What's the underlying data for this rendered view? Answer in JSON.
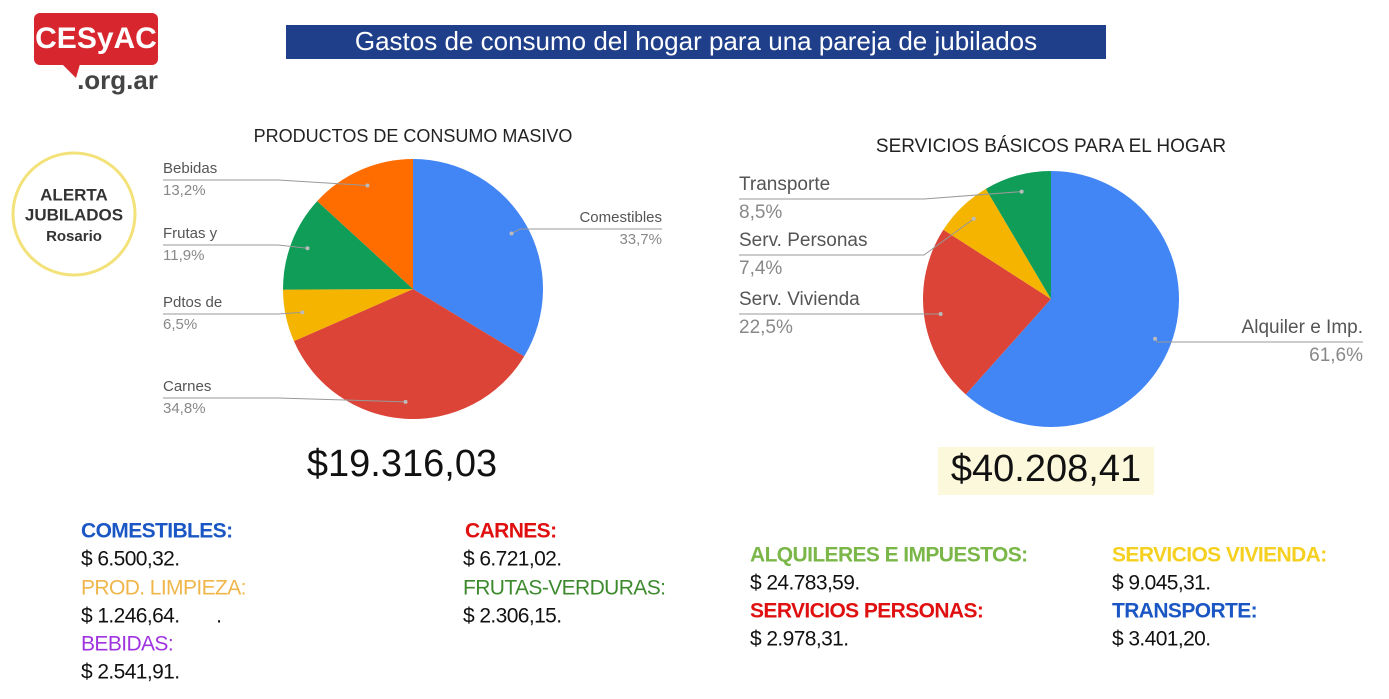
{
  "logo": {
    "name": "CESyAC",
    "domain": ".org.ar"
  },
  "badge": [
    "ALERTA",
    "JUBILADOS",
    "Rosario"
  ],
  "title": "Gastos de consumo del hogar para una pareja de jubilados",
  "chart_data": [
    {
      "type": "pie",
      "title": "PRODUCTOS DE CONSUMO MASIVO",
      "categories": [
        "Comestibles",
        "Carnes",
        "Pdtos de",
        "Frutas y",
        "Bebidas"
      ],
      "values": [
        33.7,
        34.8,
        6.5,
        11.9,
        13.2
      ],
      "value_labels": [
        "33,7%",
        "34,8%",
        "6,5%",
        "11,9%",
        "13,2%"
      ],
      "colors": [
        "#4285f4",
        "#db4437",
        "#f4b400",
        "#0f9d58",
        "#ff6d01"
      ],
      "total": "$19.316,03"
    },
    {
      "type": "pie",
      "title": "SERVICIOS BÁSICOS PARA EL HOGAR",
      "categories": [
        "Alquiler e Imp.",
        "Serv. Vivienda",
        "Serv. Personas",
        "Transporte"
      ],
      "values": [
        61.6,
        22.5,
        7.4,
        8.5
      ],
      "value_labels": [
        "61,6%",
        "22,5%",
        "7,4%",
        "8,5%"
      ],
      "colors": [
        "#4285f4",
        "#db4437",
        "#f4b400",
        "#0f9d58"
      ],
      "total": "$40.208,41"
    }
  ],
  "details": [
    {
      "label": "COMESTIBLES:",
      "amount": "$ 6.500,32.",
      "color": "#1a56c4"
    },
    {
      "label": "PROD. LIMPIEZA:",
      "amount": "$ 1.246,64.       .",
      "color": "#f0b64a"
    },
    {
      "label": "BEBIDAS:",
      "amount": "$ 2.541,91.",
      "color": "#a033e0"
    },
    {
      "label": "CARNES:",
      "amount": "$ 6.721,02.",
      "color": "#e01010"
    },
    {
      "label": "FRUTAS-VERDURAS:",
      "amount": "$ 2.306,15.",
      "color": "#3d8a2e"
    },
    {
      "label": "ALQUILERES E IMPUESTOS:",
      "amount": "$ 24.783,59.",
      "color": "#7ab648"
    },
    {
      "label": "SERVICIOS PERSONAS:",
      "amount": "$ 2.978,31.",
      "color": "#e01010"
    },
    {
      "label": "SERVICIOS VIVIENDA:",
      "amount": "$ 9.045,31.",
      "color": "#f5d020"
    },
    {
      "label": "TRANSPORTE:",
      "amount": "$ 3.401,20.",
      "color": "#1a56c4"
    }
  ]
}
